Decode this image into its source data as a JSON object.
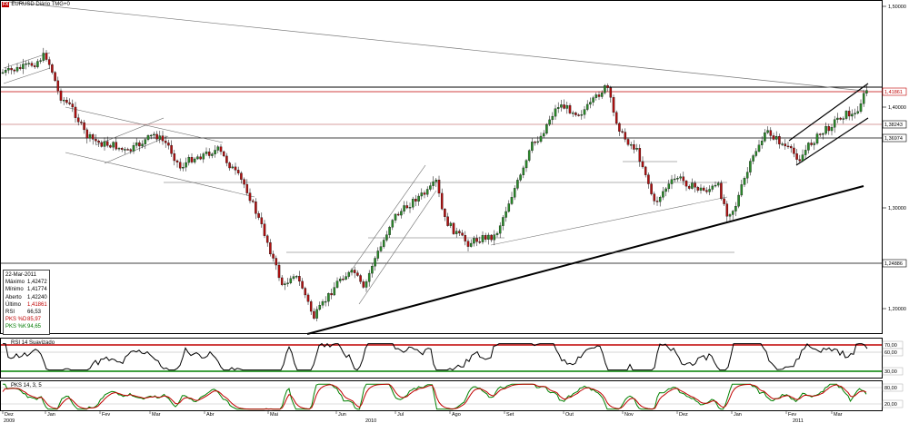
{
  "symbol_badge": "FX",
  "chart_title": "EURUSD Diário TMG+0",
  "price_panel": {
    "ylim": [
      1.17,
      1.52
    ],
    "price_ticks": [
      {
        "label": "1,50000",
        "value": 1.5
      },
      {
        "label": "1,40000",
        "value": 1.4
      },
      {
        "label": "1,30000",
        "value": 1.3
      },
      {
        "label": "1,20000",
        "value": 1.2
      }
    ],
    "level_labels": [
      {
        "label": "1,41861",
        "value": 1.41861,
        "color": "#c00000"
      },
      {
        "label": "1,38243",
        "value": 1.38243,
        "color": "#000000"
      },
      {
        "label": "1,36974",
        "value": 1.36974,
        "color": "#000000"
      },
      {
        "label": "1,24886",
        "value": 1.24886,
        "color": "#000000"
      }
    ]
  },
  "info_box": {
    "date": "22-Mar-2011",
    "rows": [
      {
        "label": "Máximo",
        "value": "1,42472"
      },
      {
        "label": "Mínimo",
        "value": "1,41774"
      },
      {
        "label": "Aberto",
        "value": "1,42240"
      },
      {
        "label": "Último",
        "value": "1,41861"
      },
      {
        "label": "RSI",
        "value": "66,53"
      },
      {
        "label": "PKS %D",
        "value": "85,97"
      },
      {
        "label": "PKS %K",
        "value": "94,65"
      }
    ]
  },
  "rsi_panel": {
    "title": "RSI 14 Suavizado",
    "ylim": [
      20,
      80
    ],
    "ticks": [
      {
        "label": "70,00",
        "value": 70
      },
      {
        "label": "60,00",
        "value": 60
      },
      {
        "label": "30,00",
        "value": 30
      }
    ],
    "colors": {
      "upper": "#c00000",
      "lower": "#008000",
      "line": "#000000"
    }
  },
  "pks_panel": {
    "title": "PKS 14, 3, 5",
    "ylim": [
      0,
      100
    ],
    "ticks": [
      {
        "label": "80,00",
        "value": 80
      },
      {
        "label": "20,00",
        "value": 20
      }
    ],
    "colors": {
      "k": "#008000",
      "d": "#c00000"
    }
  },
  "x_axis": {
    "months": [
      "Dez",
      "Jan",
      "Fev",
      "Mar",
      "Abr",
      "Mai",
      "Jun",
      "Jul",
      "Ago",
      "Set",
      "Out",
      "Nov",
      "Dez",
      "Jan",
      "Fev",
      "Mar"
    ],
    "years": [
      "2009",
      "2010",
      "2011"
    ]
  },
  "chart_data": [
    {
      "type": "candlestick",
      "title": "EURUSD Diário TMG+0",
      "ylim": [
        1.17,
        1.52
      ],
      "x": [
        "2009-12",
        "2010-01",
        "2010-02",
        "2010-03",
        "2010-04",
        "2010-05",
        "2010-06",
        "2010-07",
        "2010-08",
        "2010-09",
        "2010-10",
        "2010-11",
        "2010-12",
        "2011-01",
        "2011-02",
        "2011-03"
      ],
      "approx_close": [
        1.445,
        1.39,
        1.36,
        1.355,
        1.34,
        1.24,
        1.225,
        1.3,
        1.275,
        1.36,
        1.395,
        1.33,
        1.32,
        1.36,
        1.375,
        1.41861
      ],
      "last": {
        "date": "22-Mar-2011",
        "high": 1.42472,
        "low": 1.41774,
        "open": 1.4224,
        "close": 1.41861
      }
    },
    {
      "type": "line",
      "title": "RSI 14 Suavizado",
      "ylim": [
        20,
        80
      ],
      "series": [
        {
          "name": "RSI",
          "last": 66.53
        }
      ]
    },
    {
      "type": "line",
      "title": "PKS 14, 3, 5",
      "ylim": [
        0,
        100
      ],
      "series": [
        {
          "name": "PKS %D",
          "last": 85.97
        },
        {
          "name": "PKS %K",
          "last": 94.65
        }
      ]
    }
  ]
}
